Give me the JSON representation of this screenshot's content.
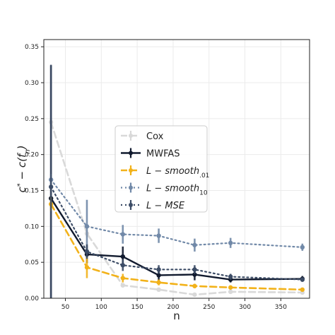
{
  "chart_data": {
    "type": "line",
    "xlabel": "n",
    "ylabel": "c* − c(f_n)",
    "xlim": [
      20,
      390
    ],
    "ylim": [
      0,
      0.36
    ],
    "xticks": [
      50,
      100,
      150,
      200,
      250,
      300,
      350
    ],
    "yticks": [
      0.0,
      0.05,
      0.1,
      0.15,
      0.2,
      0.25,
      0.3,
      0.35
    ],
    "grid": true,
    "legend_position": "center",
    "series": [
      {
        "name": "Cox",
        "color": "#d9d9d9",
        "style": "dashed",
        "x": [
          30,
          80,
          130,
          180,
          230,
          280,
          380
        ],
        "y": [
          0.245,
          0.09,
          0.018,
          0.012,
          0.005,
          0.009,
          0.008
        ],
        "err": [
          0.005,
          0.005,
          0.003,
          0.002,
          0.002,
          0.002,
          0.002
        ]
      },
      {
        "name": "MWFAS",
        "color": "#111a2e",
        "style": "solid",
        "x": [
          30,
          80,
          130,
          180,
          230,
          280,
          380
        ],
        "y": [
          0.139,
          0.061,
          0.058,
          0.032,
          0.033,
          0.026,
          0.027
        ],
        "err": [
          0.185,
          0.012,
          0.014,
          0.009,
          0.008,
          0.004,
          0.004
        ]
      },
      {
        "name": "L−smooth.01",
        "color": "#f2b21a",
        "style": "dashed",
        "x": [
          30,
          80,
          130,
          180,
          230,
          280,
          380
        ],
        "y": [
          0.131,
          0.043,
          0.028,
          0.022,
          0.017,
          0.015,
          0.012
        ],
        "err": [
          0.01,
          0.015,
          0.006,
          0.004,
          0.003,
          0.002,
          0.002
        ]
      },
      {
        "name": "L−smooth10",
        "color": "#7189a8",
        "style": "dotted",
        "x": [
          30,
          80,
          130,
          180,
          230,
          280,
          380
        ],
        "y": [
          0.165,
          0.1,
          0.089,
          0.087,
          0.074,
          0.077,
          0.071
        ],
        "err": [
          0.008,
          0.037,
          0.013,
          0.01,
          0.009,
          0.007,
          0.005
        ]
      },
      {
        "name": "L−MSE",
        "color": "#3c4c66",
        "style": "dotted",
        "x": [
          30,
          80,
          130,
          180,
          230,
          280,
          380
        ],
        "y": [
          0.155,
          0.065,
          0.046,
          0.04,
          0.04,
          0.03,
          0.026
        ],
        "err": [
          0.17,
          0.01,
          0.008,
          0.006,
          0.006,
          0.004,
          0.003
        ]
      }
    ],
    "legend": [
      {
        "main": "Cox",
        "sub": ""
      },
      {
        "main": "MWFAS",
        "sub": ""
      },
      {
        "main": "L − smooth",
        "sub": ".01"
      },
      {
        "main": "L − smooth",
        "sub": "10"
      },
      {
        "main": "L − MSE",
        "sub": ""
      }
    ]
  }
}
